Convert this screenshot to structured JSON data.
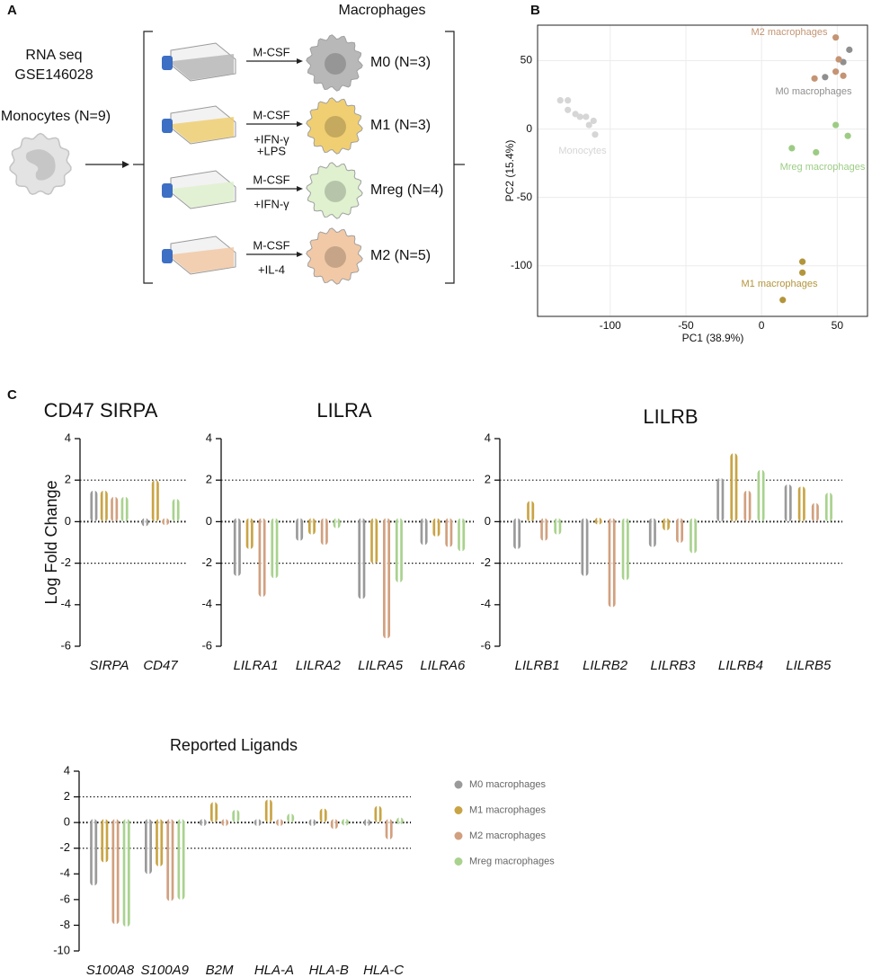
{
  "panel_labels": [
    "A",
    "B",
    "C"
  ],
  "diagram": {
    "source": [
      "RNA seq",
      "GSE146028"
    ],
    "input": "Monocytes (N=9)",
    "output_title": "Macrophages",
    "rows": [
      {
        "treatment": [
          "M-CSF"
        ],
        "label": "M0 (N=3)",
        "color": "#b8b8b8"
      },
      {
        "treatment": [
          "M-CSF",
          "+IFN-γ",
          "+LPS"
        ],
        "label": "M1 (N=3)",
        "color": "#f0cf73"
      },
      {
        "treatment": [
          "M-CSF",
          "+IFN-γ"
        ],
        "label": "Mreg (N=4)",
        "color": "#dff1cf"
      },
      {
        "treatment": [
          "M-CSF",
          "+IL-4"
        ],
        "label": "M2 (N=5)",
        "color": "#f2c9a6"
      }
    ]
  },
  "chart_data": [
    {
      "type": "scatter",
      "xlabel": "PC1 (38.9%)",
      "ylabel": "PC2 (15.4%)",
      "xlim": [
        -148,
        70
      ],
      "ylim": [
        -137,
        76
      ],
      "xticks": [
        -100,
        -50,
        0,
        50
      ],
      "yticks": [
        -100,
        -50,
        0,
        50
      ],
      "grid": true,
      "series": [
        {
          "name": "Monocytes",
          "color": "#d6d6d6",
          "x": [
            -133,
            -128,
            -128,
            -123,
            -120,
            -116,
            -111,
            -114,
            -110
          ],
          "y": [
            21,
            21,
            14,
            11,
            9,
            9,
            6,
            3,
            -4
          ]
        },
        {
          "name": "M0 macrophages",
          "color": "#8f8f8f",
          "x": [
            58,
            54,
            42
          ],
          "y": [
            58,
            49,
            38
          ]
        },
        {
          "name": "M2 macrophages",
          "color": "#c49474",
          "x": [
            49,
            51,
            49,
            54,
            35
          ],
          "y": [
            67,
            51,
            42,
            39,
            37
          ]
        },
        {
          "name": "Mreg macrophages",
          "color": "#9ccc84",
          "x": [
            49,
            57,
            20,
            36
          ],
          "y": [
            3,
            -5,
            -14,
            -17
          ]
        },
        {
          "name": "M1 macrophages",
          "color": "#b3953c",
          "x": [
            27,
            27,
            14
          ],
          "y": [
            -97,
            -105,
            -125
          ]
        }
      ]
    },
    {
      "type": "bar",
      "title": "CD47 SIRPA",
      "ylabel": "Log Fold Change",
      "categories": [
        "SIRPA",
        "CD47"
      ],
      "ylim": [
        -6,
        4
      ],
      "yticks": [
        -6,
        -4,
        -2,
        0,
        2,
        4
      ],
      "reference_lines": [
        -2,
        0,
        2
      ],
      "series": [
        {
          "color": "#9a9a9a",
          "values": [
            1.5,
            -0.4
          ]
        },
        {
          "color": "#c9a445",
          "values": [
            1.5,
            2.0
          ]
        },
        {
          "color": "#d1a07f",
          "values": [
            1.2,
            0.1
          ]
        },
        {
          "color": "#a9d28e",
          "values": [
            1.2,
            1.1
          ]
        }
      ]
    },
    {
      "type": "bar",
      "title": "LILRA",
      "categories": [
        "LILRA1",
        "LILRA2",
        "LILRA5",
        "LILRA6"
      ],
      "ylim": [
        -6,
        4
      ],
      "yticks": [
        -6,
        -4,
        -2,
        0,
        2,
        4
      ],
      "reference_lines": [
        -2,
        0,
        2
      ],
      "series": [
        {
          "color": "#9a9a9a",
          "values": [
            -2.8,
            -1.1,
            -3.9,
            -1.3
          ]
        },
        {
          "color": "#c9a445",
          "values": [
            -1.5,
            -0.8,
            -2.2,
            -0.9
          ]
        },
        {
          "color": "#d1a07f",
          "values": [
            -3.8,
            -1.3,
            -5.8,
            -1.4
          ]
        },
        {
          "color": "#a9d28e",
          "values": [
            -2.9,
            -0.5,
            -3.1,
            -1.6
          ]
        }
      ]
    },
    {
      "type": "bar",
      "title": "LILRB",
      "categories": [
        "LILRB1",
        "LILRB2",
        "LILRB3",
        "LILRB4",
        "LILRB5"
      ],
      "ylim": [
        -6,
        4
      ],
      "yticks": [
        -6,
        -4,
        -2,
        0,
        2,
        4
      ],
      "reference_lines": [
        -2,
        0,
        2
      ],
      "series": [
        {
          "color": "#9a9a9a",
          "values": [
            -1.5,
            -2.8,
            -1.4,
            2.1,
            1.8
          ]
        },
        {
          "color": "#c9a445",
          "values": [
            1.0,
            0.2,
            -0.6,
            3.3,
            1.7
          ]
        },
        {
          "color": "#d1a07f",
          "values": [
            -1.1,
            -4.3,
            -1.2,
            1.5,
            0.9
          ]
        },
        {
          "color": "#a9d28e",
          "values": [
            -0.8,
            -3.0,
            -1.7,
            2.5,
            1.4
          ]
        }
      ]
    },
    {
      "type": "bar",
      "title": "Reported Ligands",
      "categories": [
        "S100A8",
        "S100A9",
        "B2M",
        "HLA-A",
        "HLA-B",
        "HLA-C"
      ],
      "ylim": [
        -10,
        4
      ],
      "yticks": [
        -10,
        -8,
        -6,
        -4,
        -2,
        0,
        2,
        4
      ],
      "reference_lines": [
        -2,
        0,
        2
      ],
      "series": [
        {
          "name": "M0 macrophages",
          "color": "#9a9a9a",
          "values": [
            -5.2,
            -4.3,
            -0.2,
            0.1,
            -0.4,
            -0.4
          ]
        },
        {
          "name": "M1 macrophages",
          "color": "#c9a445",
          "values": [
            -3.4,
            -3.7,
            1.6,
            1.8,
            1.1,
            1.3
          ]
        },
        {
          "name": "M2 macrophages",
          "color": "#d1a07f",
          "values": [
            -8.2,
            -6.4,
            -0.5,
            -0.5,
            -0.8,
            -1.6
          ]
        },
        {
          "name": "Mreg macrophages",
          "color": "#a9d28e",
          "values": [
            -8.4,
            -6.3,
            1.0,
            0.7,
            0.3,
            0.4
          ]
        }
      ]
    }
  ]
}
